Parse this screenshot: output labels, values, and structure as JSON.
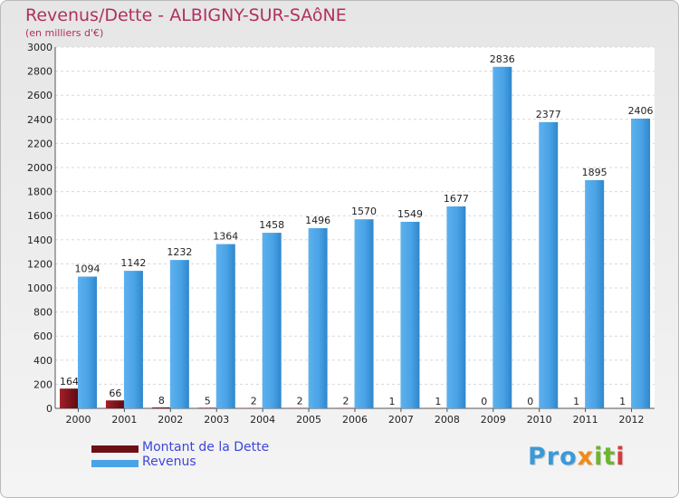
{
  "chart_data": {
    "type": "bar",
    "title": "Revenus/Dette - ALBIGNY-SUR-SAôNE",
    "subtitle": "(en milliers d'€)",
    "categories": [
      "2000",
      "2001",
      "2002",
      "2003",
      "2004",
      "2005",
      "2006",
      "2007",
      "2008",
      "2009",
      "2010",
      "2011",
      "2012"
    ],
    "series": [
      {
        "name": "Montant de la Dette",
        "color": "#6e0f16",
        "values": [
          164,
          66,
          8,
          5,
          2,
          2,
          2,
          1,
          1,
          0,
          0,
          1,
          1
        ]
      },
      {
        "name": "Revenus",
        "color": "#4aa3e6",
        "values": [
          1094,
          1142,
          1232,
          1364,
          1458,
          1496,
          1570,
          1549,
          1677,
          2836,
          2377,
          1895,
          2406
        ]
      }
    ],
    "ylim": [
      0,
      3000
    ],
    "yticks": [
      0,
      200,
      400,
      600,
      800,
      1000,
      1200,
      1400,
      1600,
      1800,
      2000,
      2200,
      2400,
      2600,
      2800,
      3000
    ],
    "grid": true,
    "legend_position": "bottom-left"
  },
  "logo": {
    "text": "Proxiti",
    "parts": [
      "Pro",
      "x",
      "it",
      "i"
    ]
  }
}
